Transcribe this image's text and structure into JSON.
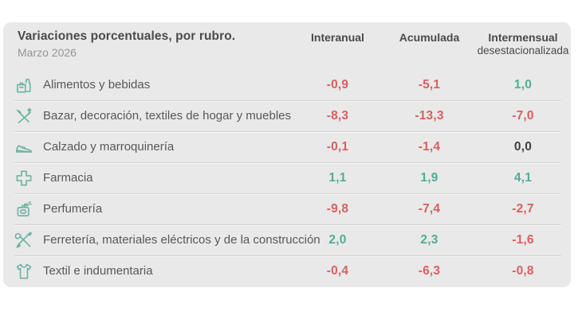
{
  "panel": {
    "title": "Variaciones porcentuales, por rubro.",
    "subtitle": "Marzo 2026"
  },
  "columns": [
    {
      "label": "Interanual",
      "sublabel": ""
    },
    {
      "label": "Acumulada",
      "sublabel": ""
    },
    {
      "label": "Intermensual",
      "sublabel": "desestacionalizada"
    }
  ],
  "rows": [
    {
      "icon": "groceries-icon",
      "label": "Alimentos y bebidas",
      "values": [
        "-0,9",
        "-5,1",
        "1,0"
      ]
    },
    {
      "icon": "home-textiles-icon",
      "label": "Bazar, decoración, textiles de hogar y muebles",
      "values": [
        "-8,3",
        "-13,3",
        "-7,0"
      ]
    },
    {
      "icon": "shoe-icon",
      "label": "Calzado y marroquinería",
      "values": [
        "-0,1",
        "-1,4",
        "0,0"
      ]
    },
    {
      "icon": "pharmacy-cross-icon",
      "label": "Farmacia",
      "values": [
        "1,1",
        "1,9",
        "4,1"
      ]
    },
    {
      "icon": "perfume-bottle-icon",
      "label": "Perfumería",
      "values": [
        "-9,8",
        "-7,4",
        "-2,7"
      ]
    },
    {
      "icon": "tools-icon",
      "label": "Ferretería, materiales eléctricos y de la construcción",
      "values": [
        "2,0",
        "2,3",
        "-1,6"
      ]
    },
    {
      "icon": "tshirt-icon",
      "label": "Textil e indumentaria",
      "values": [
        "-0,4",
        "-6,3",
        "-0,8"
      ]
    }
  ],
  "colors": {
    "negative": "#d95f5f",
    "positive": "#4fae96",
    "neutral": "#3f3f3f",
    "icon_stroke": "#6db4a0",
    "panel_bg": "#e9e9e9"
  },
  "chart_data": {
    "type": "table",
    "title": "Variaciones porcentuales, por rubro.",
    "subtitle": "Marzo 2026",
    "columns": [
      "Interanual",
      "Acumulada",
      "Intermensual desestacionalizada"
    ],
    "rows": [
      {
        "rubro": "Alimentos y bebidas",
        "values": [
          -0.9,
          -5.1,
          1.0
        ]
      },
      {
        "rubro": "Bazar, decoración, textiles de hogar y muebles",
        "values": [
          -8.3,
          -13.3,
          -7.0
        ]
      },
      {
        "rubro": "Calzado y marroquinería",
        "values": [
          -0.1,
          -1.4,
          0.0
        ]
      },
      {
        "rubro": "Farmacia",
        "values": [
          1.1,
          1.9,
          4.1
        ]
      },
      {
        "rubro": "Perfumería",
        "values": [
          -9.8,
          -7.4,
          -2.7
        ]
      },
      {
        "rubro": "Ferretería, materiales eléctricos y de la construcción",
        "values": [
          2.0,
          2.3,
          -1.6
        ]
      },
      {
        "rubro": "Textil e indumentaria",
        "values": [
          -0.4,
          -6.3,
          -0.8
        ]
      }
    ],
    "value_color_rule": "negative=red, positive=green, zero=dark-gray",
    "decimal_separator": ","
  }
}
